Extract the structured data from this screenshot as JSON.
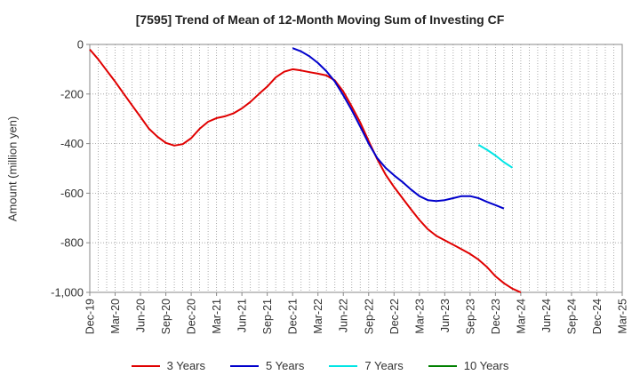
{
  "chart_data": {
    "type": "line",
    "title": "[7595]  Trend of Mean of 12-Month Moving Sum of Investing CF",
    "xlabel": "",
    "ylabel": "Amount (million yen)",
    "ylim": [
      -1000,
      0
    ],
    "yticks": [
      0,
      -200,
      -400,
      -600,
      -800,
      -1000
    ],
    "ytick_labels": [
      "0",
      "-200",
      "-400",
      "-600",
      "-800",
      "-1,000"
    ],
    "x_start": "Dec-19",
    "x_end": "Mar-25",
    "xticks": [
      "Dec-19",
      "Mar-20",
      "Jun-20",
      "Sep-20",
      "Dec-20",
      "Mar-21",
      "Jun-21",
      "Sep-21",
      "Dec-21",
      "Mar-22",
      "Jun-22",
      "Sep-22",
      "Dec-22",
      "Mar-23",
      "Jun-23",
      "Sep-23",
      "Dec-23",
      "Mar-24",
      "Jun-24",
      "Sep-24",
      "Dec-24",
      "Mar-25"
    ],
    "grid": true,
    "legend_position": "bottom",
    "series": [
      {
        "name": "3 Years",
        "color": "#e00000",
        "start_index": 0,
        "values": [
          -20,
          -60,
          -105,
          -150,
          -198,
          -245,
          -292,
          -340,
          -372,
          -397,
          -408,
          -402,
          -378,
          -340,
          -312,
          -297,
          -290,
          -278,
          -258,
          -232,
          -200,
          -170,
          -133,
          -110,
          -100,
          -105,
          -112,
          -118,
          -125,
          -145,
          -190,
          -250,
          -315,
          -390,
          -462,
          -525,
          -575,
          -620,
          -665,
          -708,
          -745,
          -772,
          -790,
          -808,
          -826,
          -845,
          -868,
          -898,
          -935,
          -963,
          -985,
          -1000
        ]
      },
      {
        "name": "5 Years",
        "color": "#0000cc",
        "start_index": 24,
        "values": [
          -15,
          -28,
          -48,
          -75,
          -108,
          -150,
          -205,
          -265,
          -332,
          -400,
          -458,
          -498,
          -528,
          -555,
          -585,
          -612,
          -628,
          -632,
          -628,
          -620,
          -612,
          -612,
          -620,
          -635,
          -648,
          -662
        ]
      },
      {
        "name": "7 Years",
        "color": "#00e5e5",
        "start_index": 46,
        "values": [
          -405,
          -425,
          -448,
          -475,
          -497
        ]
      },
      {
        "name": "10 Years",
        "color": "#008000",
        "start_index": 0,
        "values": []
      }
    ]
  }
}
